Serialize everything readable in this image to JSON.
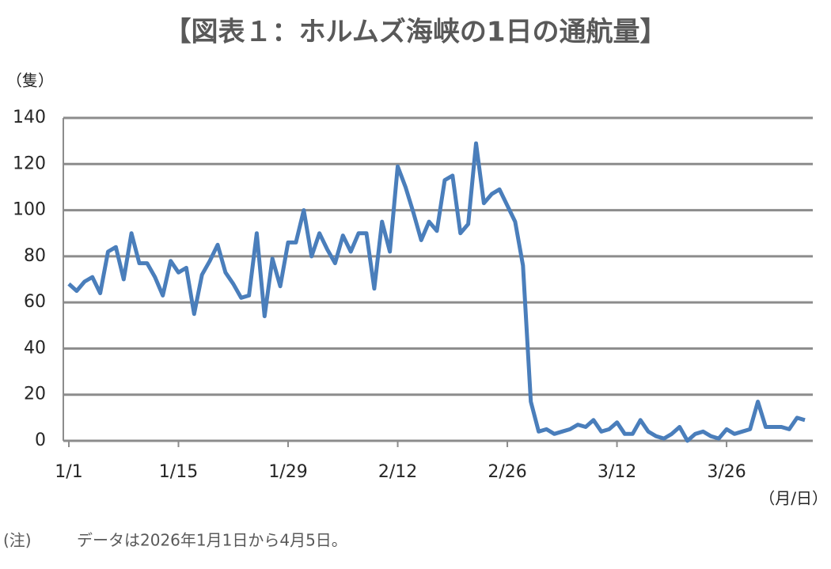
{
  "chart_data": {
    "type": "line",
    "title": "【図表１：ホルムズ海峡の1日の通航量】",
    "y_label": "（隻）",
    "x_label": "（月/日）",
    "note_label": "(注)",
    "note": "データは2026年1月1日から4月5日。",
    "categories": [
      "1/1",
      null,
      null,
      null,
      null,
      null,
      null,
      null,
      null,
      null,
      null,
      null,
      null,
      null,
      "1/15",
      null,
      null,
      null,
      null,
      null,
      null,
      null,
      null,
      null,
      null,
      null,
      null,
      null,
      "1/29",
      null,
      null,
      null,
      null,
      null,
      null,
      null,
      null,
      null,
      null,
      null,
      null,
      null,
      "2/12",
      null,
      null,
      null,
      null,
      null,
      null,
      null,
      null,
      null,
      null,
      null,
      null,
      null,
      "2/26",
      null,
      null,
      null,
      null,
      null,
      null,
      null,
      null,
      null,
      null,
      null,
      null,
      null,
      "3/12",
      null,
      null,
      null,
      null,
      null,
      null,
      null,
      null,
      null,
      null,
      null,
      null,
      null,
      "3/26",
      null,
      null,
      null,
      null,
      null,
      null,
      null,
      null,
      null,
      null
    ],
    "values": [
      68,
      65,
      69,
      71,
      64,
      82,
      84,
      70,
      90,
      77,
      77,
      71,
      63,
      78,
      73,
      75,
      55,
      72,
      78,
      85,
      73,
      68,
      62,
      63,
      90,
      54,
      79,
      67,
      86,
      86,
      100,
      80,
      90,
      83,
      77,
      89,
      82,
      90,
      90,
      66,
      95,
      82,
      119,
      110,
      99,
      87,
      95,
      91,
      113,
      115,
      90,
      94,
      129,
      103,
      107,
      109,
      102,
      95,
      76,
      17,
      4,
      5,
      3,
      4,
      5,
      7,
      6,
      9,
      4,
      5,
      8,
      3,
      3,
      9,
      4,
      2,
      1,
      3,
      6,
      0,
      3,
      4,
      2,
      1,
      5,
      3,
      4,
      5,
      17,
      6,
      6,
      6,
      5,
      10,
      9
    ],
    "color": "#4a7ebb",
    "ylim": [
      0,
      140
    ],
    "yticks": [
      0,
      20,
      40,
      60,
      80,
      100,
      120,
      140
    ],
    "grid": true
  }
}
